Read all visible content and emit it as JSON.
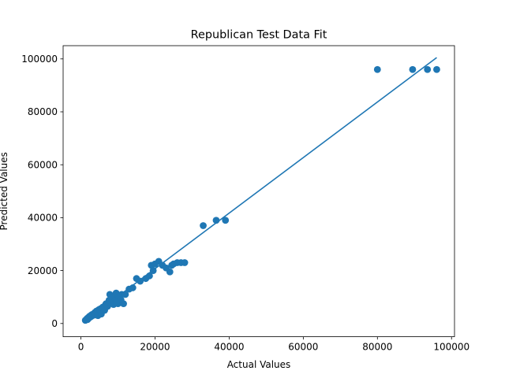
{
  "chart_data": {
    "type": "scatter",
    "title": "Republican Test Data Fit",
    "xlabel": "Actual Values",
    "ylabel": "Predicted Values",
    "xlim": [
      -4800,
      100800
    ],
    "ylim": [
      -5000,
      105000
    ],
    "xticks": [
      0,
      20000,
      40000,
      60000,
      80000,
      100000
    ],
    "xtick_labels": [
      "0",
      "20000",
      "40000",
      "60000",
      "80000",
      "100000"
    ],
    "yticks": [
      0,
      20000,
      40000,
      60000,
      80000,
      100000
    ],
    "ytick_labels": [
      "0",
      "20000",
      "40000",
      "60000",
      "80000",
      "100000"
    ],
    "grid": false,
    "legend": "none",
    "series_color": "#1f77b4",
    "series": [
      {
        "type": "scatter",
        "x": [
          1200,
          1500,
          1700,
          2000,
          2200,
          2400,
          2600,
          2900,
          3100,
          3300,
          3500,
          3800,
          4000,
          4200,
          4500,
          4800,
          5000,
          5300,
          5600,
          5900,
          6200,
          6600,
          7000,
          7400,
          7800,
          8200,
          8600,
          9000,
          9500,
          10000,
          10500,
          11000,
          11500,
          12000,
          13000,
          14000,
          15000,
          16000,
          17500,
          18500,
          19000,
          19500,
          20000,
          21000,
          22000,
          23000,
          24000,
          24500,
          25000,
          26000,
          27000,
          28000,
          33000,
          36500,
          39000,
          80000,
          89500,
          93500,
          96000,
          1800,
          2800,
          3600,
          4400,
          5200,
          6000,
          6800,
          7600,
          8400,
          9200,
          10200,
          4600,
          5500,
          6400,
          7200,
          8000,
          8800,
          9600,
          10800
        ],
        "y": [
          1200,
          1600,
          1900,
          2300,
          2100,
          2800,
          2500,
          3300,
          3000,
          3600,
          3400,
          4200,
          3900,
          4700,
          4300,
          5200,
          4900,
          5600,
          5400,
          6200,
          6000,
          7000,
          6600,
          7600,
          11000,
          8200,
          10000,
          9000,
          11500,
          7500,
          10500,
          11000,
          7500,
          11000,
          13000,
          13500,
          17000,
          16000,
          17000,
          18000,
          22000,
          20000,
          22500,
          23500,
          22000,
          21000,
          19500,
          22000,
          22500,
          23000,
          23000,
          23000,
          37000,
          39000,
          39000,
          96000,
          96000,
          96000,
          96000,
          1500,
          2700,
          3200,
          4000,
          5000,
          5800,
          7500,
          8800,
          9500,
          8600,
          9800,
          3000,
          3600,
          5000,
          6500,
          7800,
          7200,
          8000,
          9000
        ]
      },
      {
        "type": "line",
        "x": [
          1200,
          96000
        ],
        "y": [
          1000,
          100500
        ]
      }
    ]
  }
}
